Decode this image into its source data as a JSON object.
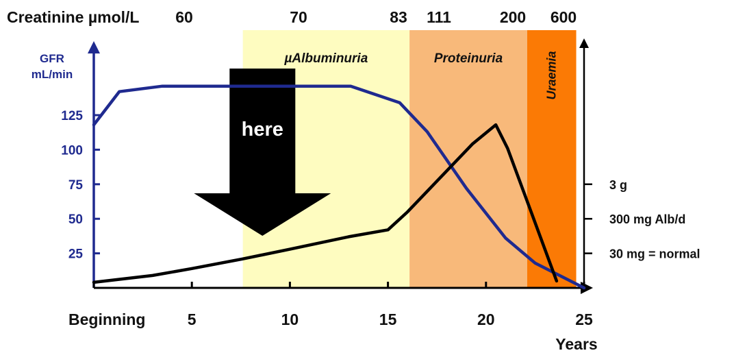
{
  "chart_data": {
    "type": "line",
    "creatinine_label": "Creatinine µmol/L",
    "creatinine_values": [
      "60",
      "70",
      "83",
      "111",
      "200",
      "600"
    ],
    "x_tick_labels": [
      "Beginning",
      "5",
      "10",
      "15",
      "20",
      "25"
    ],
    "x_ticks": [
      0,
      5,
      10,
      15,
      20,
      25
    ],
    "xlabel": "Years",
    "xlim": [
      0,
      25
    ],
    "left_axis_label": [
      "GFR",
      "mL/min"
    ],
    "left_ticks": [
      25,
      50,
      75,
      100,
      125
    ],
    "left_ylim": [
      0,
      150
    ],
    "right_ticks": [
      {
        "label": "30 mg = normal",
        "value": 25
      },
      {
        "label": "300 mg Alb/d",
        "value": 50
      },
      {
        "label": "3 g",
        "value": 75
      }
    ],
    "zones": [
      {
        "label": "µAlbuminuria",
        "x_start": 7.6,
        "x_end": 16.1,
        "color": "#fefcc0"
      },
      {
        "label": "Proteinuria",
        "x_start": 16.1,
        "x_end": 22.1,
        "color": "#f8b97a"
      },
      {
        "label": "Uraemia",
        "x_start": 22.1,
        "x_end": 24.6,
        "color": "#fb7a05"
      }
    ],
    "annotation": {
      "label": "here",
      "x": 8.6
    },
    "series": [
      {
        "color": "#1f2a8f",
        "x": [
          0,
          1.3,
          3.5,
          7,
          13.1,
          15.6,
          17,
          19,
          21,
          22.5,
          25
        ],
        "y": [
          118,
          142,
          146,
          146,
          146,
          134,
          113,
          72,
          36,
          18,
          0
        ]
      },
      {
        "color": "#000000",
        "x": [
          0,
          3,
          5,
          7.6,
          10,
          13,
          15,
          16,
          19.3,
          20.5,
          21.1,
          22.3,
          23.6
        ],
        "y": [
          4,
          9,
          14,
          21,
          28,
          37,
          42,
          55,
          104,
          118,
          101,
          55,
          5
        ]
      }
    ]
  }
}
